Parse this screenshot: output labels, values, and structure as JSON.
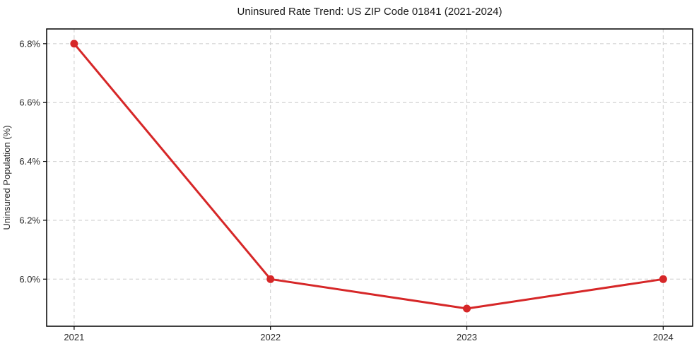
{
  "chart_data": {
    "type": "line",
    "title": "Uninsured Rate Trend: US ZIP Code 01841 (2021-2024)",
    "xlabel": "",
    "ylabel": "Uninsured Population (%)",
    "x": [
      2021,
      2022,
      2023,
      2024
    ],
    "values": [
      6.8,
      6.0,
      5.9,
      6.0
    ],
    "xticks": [
      "2021",
      "2022",
      "2023",
      "2024"
    ],
    "yticks": [
      6.0,
      6.2,
      6.4,
      6.6,
      6.8
    ],
    "ytick_labels": [
      "6.0%",
      "6.2%",
      "6.4%",
      "6.6%",
      "6.8%"
    ],
    "xlim": [
      2020.86,
      2024.15
    ],
    "ylim": [
      5.84,
      6.85
    ],
    "grid": true,
    "legend": "none",
    "line_color": "#d62728",
    "grid_color": "#cbcbcb",
    "marker": "circle"
  }
}
